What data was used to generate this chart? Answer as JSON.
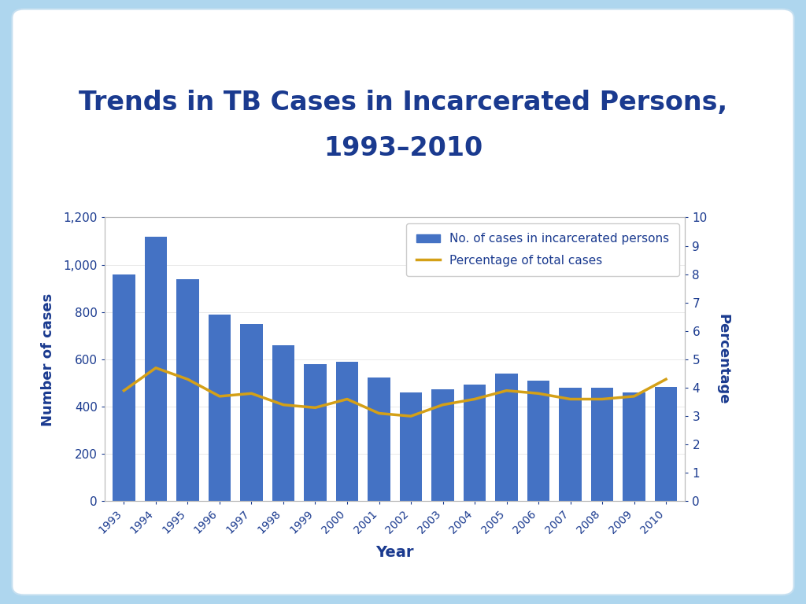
{
  "title_line1": "Trends in TB Cases in Incarcerated Persons,",
  "title_line2": "1993–2010",
  "title_color": "#1a3a8f",
  "title_fontsize": 24,
  "years": [
    1993,
    1994,
    1995,
    1996,
    1997,
    1998,
    1999,
    2000,
    2001,
    2002,
    2003,
    2004,
    2005,
    2006,
    2007,
    2008,
    2009,
    2010
  ],
  "cases": [
    960,
    1120,
    940,
    790,
    750,
    660,
    580,
    590,
    525,
    460,
    475,
    495,
    540,
    510,
    480,
    480,
    460,
    485
  ],
  "percentages": [
    3.9,
    4.7,
    4.3,
    3.7,
    3.8,
    3.4,
    3.3,
    3.6,
    3.1,
    3.0,
    3.4,
    3.6,
    3.9,
    3.8,
    3.6,
    3.6,
    3.7,
    4.3
  ],
  "bar_color": "#4472c4",
  "line_color": "#d4a017",
  "ylabel_left": "Number of cases",
  "ylabel_right": "Percentage",
  "xlabel": "Year",
  "ylim_left": [
    0,
    1200
  ],
  "ylim_right": [
    0,
    10
  ],
  "yticks_left": [
    0,
    200,
    400,
    600,
    800,
    1000,
    1200
  ],
  "yticks_right": [
    0,
    1,
    2,
    3,
    4,
    5,
    6,
    7,
    8,
    9,
    10
  ],
  "legend_bar_label": "No. of cases in incarcerated persons",
  "legend_line_label": "Percentage of total cases",
  "background_outer": "#aed6ee",
  "background_card": "#ffffff",
  "text_color": "#1a3a8f",
  "grid_color": "#e0e0e0",
  "line_width": 2.5,
  "bar_width": 0.7
}
